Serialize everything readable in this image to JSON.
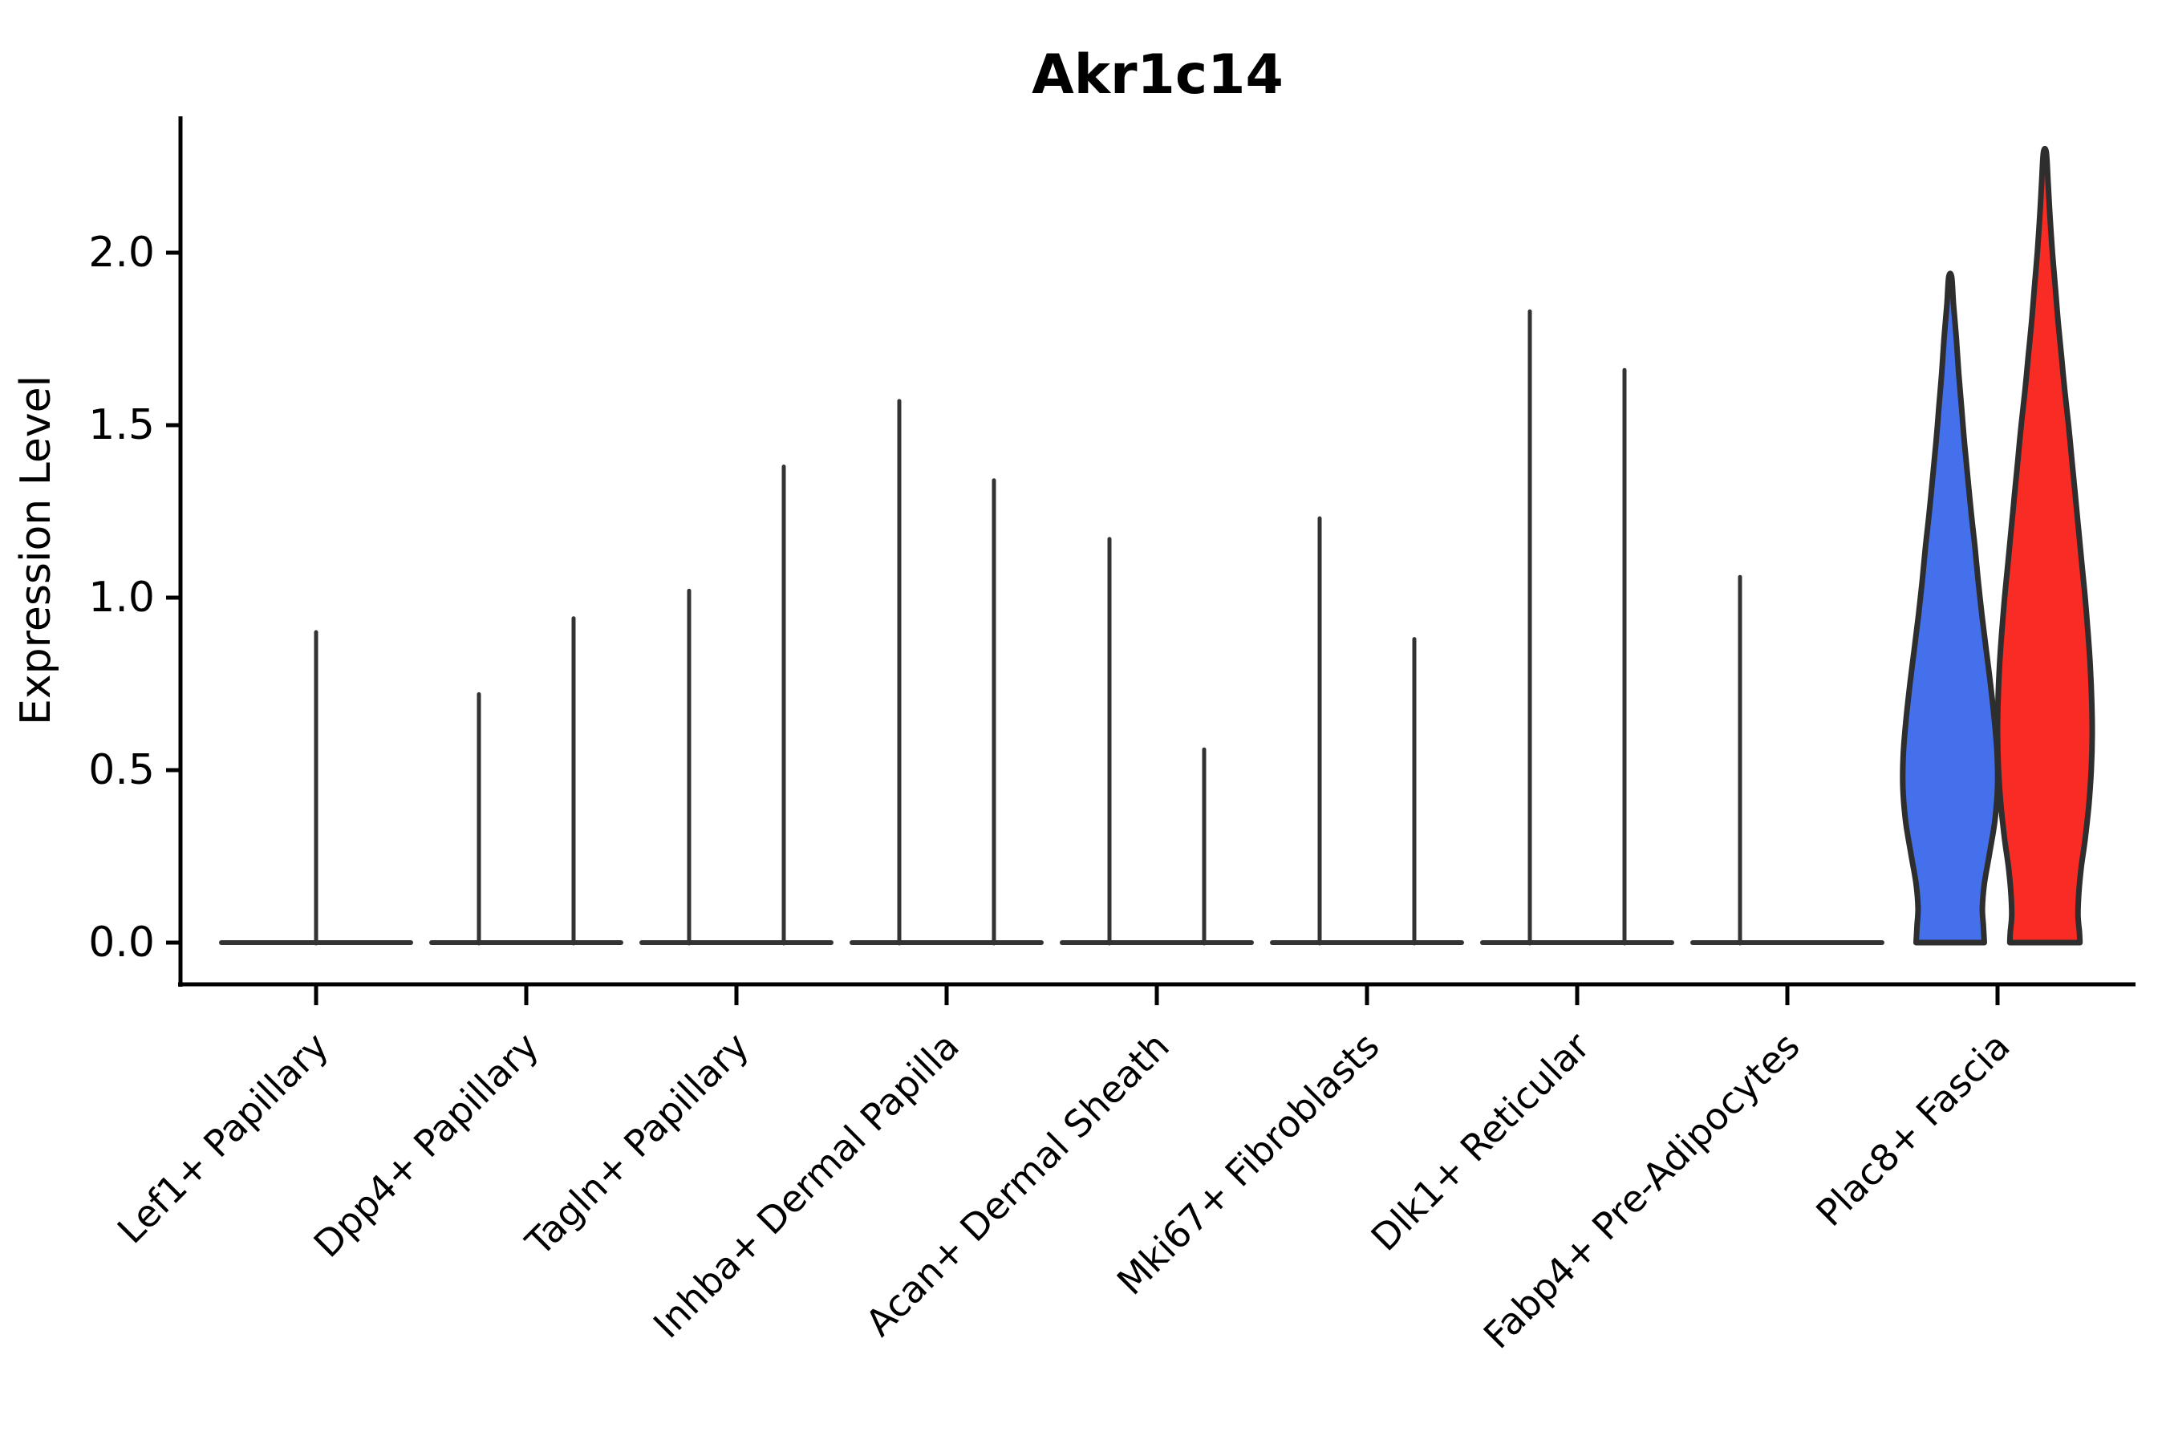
{
  "figure": {
    "background": "#ffffff"
  },
  "chart_data": {
    "type": "violin",
    "title": "Akr1c14",
    "ylabel": "Expression Level",
    "xlabel": "",
    "ylim": [
      0,
      2.4
    ],
    "grid": false,
    "legend": null,
    "x_label_rotation_deg": 45,
    "yticks": [
      {
        "label": "0.0",
        "value": 0.0
      },
      {
        "label": "0.5",
        "value": 0.5
      },
      {
        "label": "1.0",
        "value": 1.0
      },
      {
        "label": "1.5",
        "value": 1.5
      },
      {
        "label": "2.0",
        "value": 2.0
      }
    ],
    "colors": {
      "blue_fill": "#4470EB",
      "red_fill": "#F92B25",
      "spike": "#333333",
      "violin_outline": "#2e2e2e",
      "axis": "#000000",
      "text": "#000000"
    },
    "categories": [
      {
        "label": "Lef1+ Papillary",
        "spikes": [
          {
            "position": "center",
            "max": 0.9
          }
        ]
      },
      {
        "label": "Dpp4+ Papillary",
        "spikes": [
          {
            "position": "left",
            "max": 0.72
          },
          {
            "position": "right",
            "max": 0.94
          }
        ]
      },
      {
        "label": "Tagln+ Papillary",
        "spikes": [
          {
            "position": "left",
            "max": 1.02
          },
          {
            "position": "right",
            "max": 1.38
          }
        ]
      },
      {
        "label": "Inhba+ Dermal Papilla",
        "spikes": [
          {
            "position": "left",
            "max": 1.57
          },
          {
            "position": "right",
            "max": 1.34
          }
        ]
      },
      {
        "label": "Acan+ Dermal Sheath",
        "spikes": [
          {
            "position": "left",
            "max": 1.17
          },
          {
            "position": "right",
            "max": 0.56
          }
        ]
      },
      {
        "label": "Mki67+ Fibroblasts",
        "spikes": [
          {
            "position": "left",
            "max": 1.23
          },
          {
            "position": "right",
            "max": 0.88
          }
        ]
      },
      {
        "label": "Dlk1+ Reticular",
        "spikes": [
          {
            "position": "left",
            "max": 1.83
          },
          {
            "position": "right",
            "max": 1.66
          }
        ]
      },
      {
        "label": "Fabp4+ Pre-Adipocytes",
        "spikes": [
          {
            "position": "left",
            "max": 1.06
          }
        ]
      },
      {
        "label": "Plac8+ Fascia",
        "spikes": [],
        "filled_violins": [
          {
            "side": "left",
            "color": "blue_fill",
            "max": 1.93,
            "profile": [
              [
                1.93,
                0.03
              ],
              [
                1.85,
                0.07
              ],
              [
                1.75,
                0.13
              ],
              [
                1.65,
                0.18
              ],
              [
                1.55,
                0.24
              ],
              [
                1.45,
                0.3
              ],
              [
                1.35,
                0.37
              ],
              [
                1.25,
                0.44
              ],
              [
                1.15,
                0.52
              ],
              [
                1.05,
                0.59
              ],
              [
                0.95,
                0.67
              ],
              [
                0.85,
                0.76
              ],
              [
                0.75,
                0.85
              ],
              [
                0.65,
                0.93
              ],
              [
                0.55,
                0.99
              ],
              [
                0.45,
                1.0
              ],
              [
                0.35,
                0.94
              ],
              [
                0.25,
                0.82
              ],
              [
                0.17,
                0.72
              ],
              [
                0.1,
                0.68
              ],
              [
                0.05,
                0.7
              ],
              [
                0.0,
                0.72
              ]
            ]
          },
          {
            "side": "right",
            "color": "red_fill",
            "max": 2.29,
            "profile": [
              [
                2.29,
                0.03
              ],
              [
                2.2,
                0.07
              ],
              [
                2.1,
                0.11
              ],
              [
                2.0,
                0.16
              ],
              [
                1.9,
                0.22
              ],
              [
                1.8,
                0.28
              ],
              [
                1.7,
                0.35
              ],
              [
                1.6,
                0.42
              ],
              [
                1.5,
                0.5
              ],
              [
                1.4,
                0.57
              ],
              [
                1.3,
                0.64
              ],
              [
                1.2,
                0.71
              ],
              [
                1.1,
                0.78
              ],
              [
                1.0,
                0.85
              ],
              [
                0.9,
                0.91
              ],
              [
                0.8,
                0.96
              ],
              [
                0.7,
                0.99
              ],
              [
                0.6,
                1.0
              ],
              [
                0.5,
                0.98
              ],
              [
                0.4,
                0.93
              ],
              [
                0.3,
                0.85
              ],
              [
                0.22,
                0.77
              ],
              [
                0.15,
                0.72
              ],
              [
                0.08,
                0.7
              ],
              [
                0.03,
                0.73
              ],
              [
                0.0,
                0.74
              ]
            ]
          }
        ]
      }
    ]
  }
}
